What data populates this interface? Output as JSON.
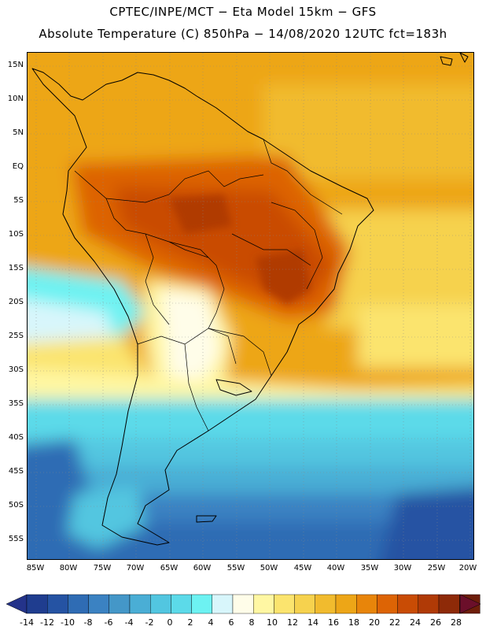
{
  "title_line1": "CPTEC/INPE/MCT −  Eta Model 15km − GFS",
  "title_line2": "Absolute Temperature (C) 850hPa − 14/08/2020 12UTC fct=183h",
  "latitude_labels": [
    "15N",
    "10N",
    "5N",
    "EQ",
    "5S",
    "10S",
    "15S",
    "20S",
    "25S",
    "30S",
    "35S",
    "40S",
    "45S",
    "50S",
    "55S"
  ],
  "longitude_labels": [
    "85W",
    "80W",
    "75W",
    "70W",
    "65W",
    "60W",
    "55W",
    "50W",
    "45W",
    "40W",
    "35W",
    "30W",
    "25W",
    "20W"
  ],
  "colorbar": {
    "labels": [
      "-14",
      "-12",
      "-10",
      "-8",
      "-6",
      "-4",
      "-2",
      "0",
      "2",
      "4",
      "6",
      "8",
      "10",
      "12",
      "14",
      "16",
      "18",
      "20",
      "22",
      "24",
      "26",
      "28"
    ],
    "colors": [
      "#1f3d8f",
      "#2553a3",
      "#2f6cb4",
      "#3b82c2",
      "#4497c8",
      "#4aaed5",
      "#52c6e0",
      "#5cdae9",
      "#6df2f2",
      "#d8f6fb",
      "#fffde9",
      "#fff7a3",
      "#fbe46e",
      "#f6d24e",
      "#f1bb2e",
      "#eda617",
      "#e8850a",
      "#dd6405",
      "#c94c05",
      "#b03a06",
      "#8e2a08",
      "#6e1e0a"
    ],
    "under_color": "#24338a",
    "over_color": "#6b0f2a"
  }
}
